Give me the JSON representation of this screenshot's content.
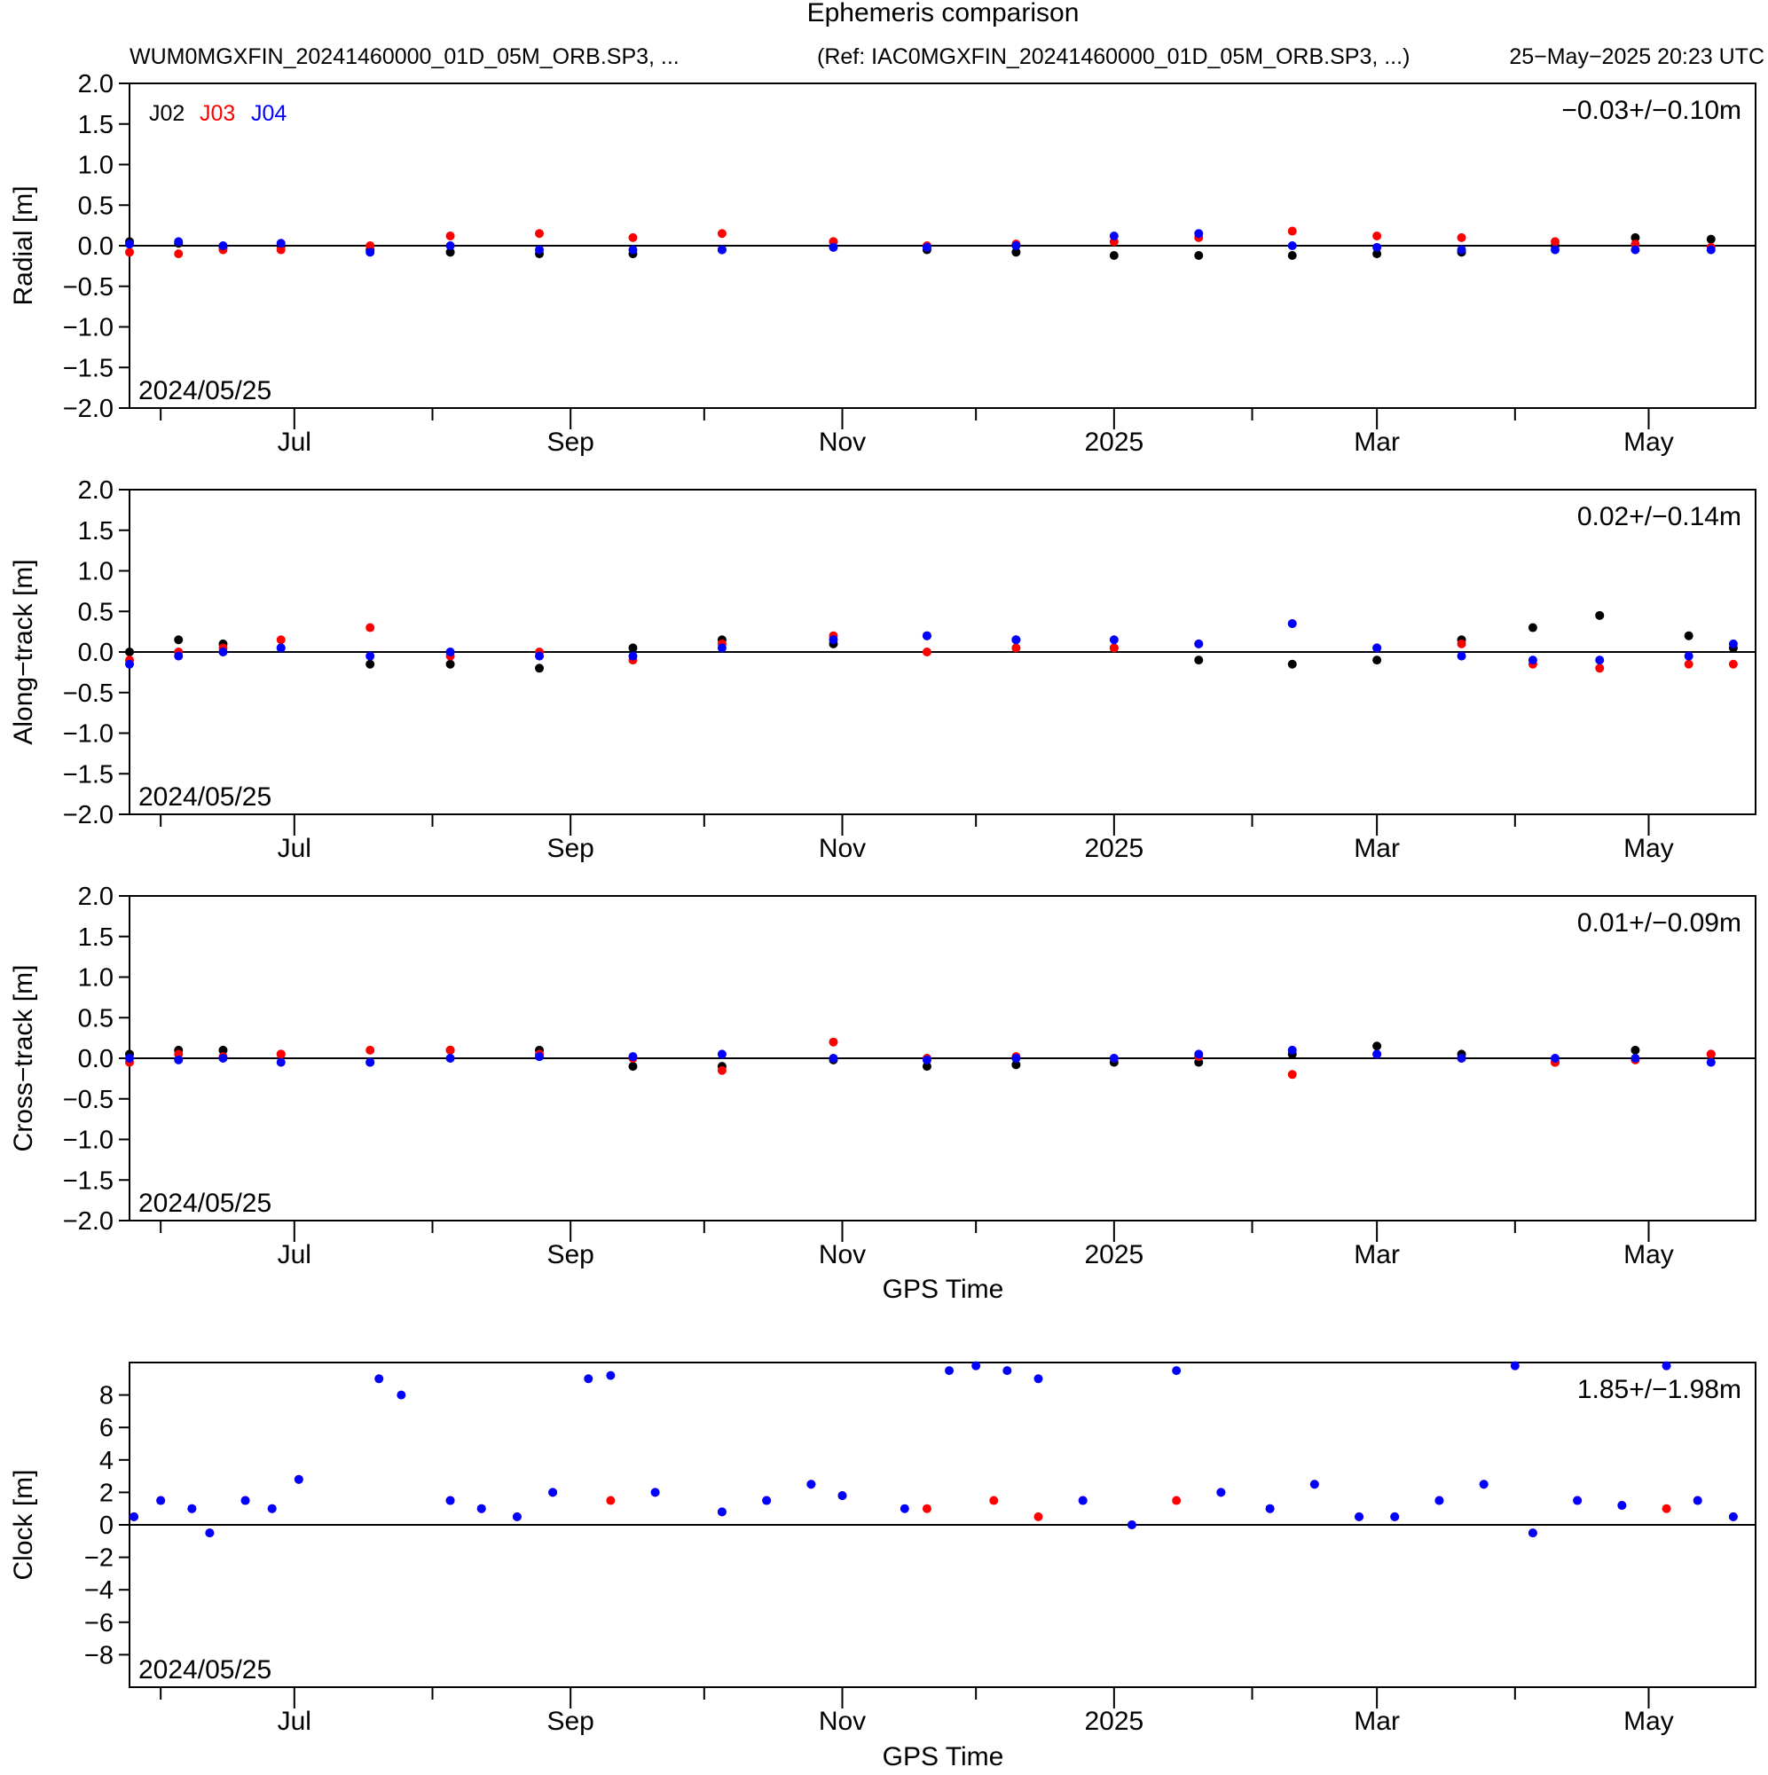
{
  "header": {
    "title": "Ephemeris comparison",
    "file_label": "WUM0MGXFIN_20241460000_01D_05M_ORB.SP3, ...",
    "ref_label": "(Ref: IAC0MGXFIN_20241460000_01D_05M_ORB.SP3, ...)",
    "timestamp": "25−May−2025 20:23 UTC"
  },
  "x_axis": {
    "label": "GPS Time",
    "start_date": "2024/05/25",
    "range": [
      "2024-05-25",
      "2025-05-25"
    ],
    "major_ticks": [
      {
        "date": "2024-07-01",
        "label": "Jul"
      },
      {
        "date": "2024-09-01",
        "label": "Sep"
      },
      {
        "date": "2024-11-01",
        "label": "Nov"
      },
      {
        "date": "2025-01-01",
        "label": "2025"
      },
      {
        "date": "2025-03-01",
        "label": "Mar"
      },
      {
        "date": "2025-05-01",
        "label": "May"
      }
    ],
    "minor_ticks": [
      "2024-06-01",
      "2024-08-01",
      "2024-10-01",
      "2024-12-01",
      "2025-02-01",
      "2025-04-01"
    ]
  },
  "colors": {
    "J02": "#000000",
    "J03": "#ff0000",
    "J04": "#0000ff"
  },
  "chart_data": [
    {
      "type": "scatter",
      "ylabel": "Radial [m]",
      "ylim": [
        -2.0,
        2.0
      ],
      "yticks": [
        "2.0",
        "1.5",
        "1.0",
        "0.5",
        "0.0",
        "−0.5",
        "−1.0",
        "−1.5",
        "−2.0"
      ],
      "stat": "−0.03+/−0.10m",
      "date_label": "2024/05/25",
      "legend": [
        "J02",
        "J03",
        "J04"
      ],
      "series": [
        {
          "name": "J02",
          "x": [
            "2024-05-25",
            "2024-06-05",
            "2024-06-15",
            "2024-06-28",
            "2024-07-18",
            "2024-08-05",
            "2024-08-25",
            "2024-09-15",
            "2024-10-05",
            "2024-10-30",
            "2024-11-20",
            "2024-12-10",
            "2025-01-01",
            "2025-01-20",
            "2025-02-10",
            "2025-03-01",
            "2025-03-20",
            "2025-04-10",
            "2025-04-28",
            "2025-05-15"
          ],
          "y": [
            0.05,
            0.03,
            -0.02,
            0.0,
            -0.05,
            -0.08,
            -0.1,
            -0.1,
            -0.05,
            0.05,
            -0.05,
            -0.08,
            -0.12,
            -0.12,
            -0.12,
            -0.1,
            -0.08,
            0.0,
            0.1,
            0.08
          ]
        },
        {
          "name": "J03",
          "x": [
            "2024-05-25",
            "2024-06-05",
            "2024-06-15",
            "2024-06-28",
            "2024-07-18",
            "2024-08-05",
            "2024-08-25",
            "2024-09-15",
            "2024-10-05",
            "2024-10-30",
            "2024-11-20",
            "2024-12-10",
            "2025-01-01",
            "2025-01-20",
            "2025-02-10",
            "2025-03-01",
            "2025-03-20",
            "2025-04-10",
            "2025-04-28",
            "2025-05-15"
          ],
          "y": [
            -0.08,
            -0.1,
            -0.05,
            -0.05,
            0.0,
            0.12,
            0.15,
            0.1,
            0.15,
            0.05,
            0.0,
            0.02,
            0.05,
            0.1,
            0.18,
            0.12,
            0.1,
            0.05,
            0.02,
            -0.02
          ]
        },
        {
          "name": "J04",
          "x": [
            "2024-05-25",
            "2024-06-05",
            "2024-06-15",
            "2024-06-28",
            "2024-07-18",
            "2024-08-05",
            "2024-08-25",
            "2024-09-15",
            "2024-10-05",
            "2024-10-30",
            "2024-11-20",
            "2024-12-10",
            "2025-01-01",
            "2025-01-20",
            "2025-02-10",
            "2025-03-01",
            "2025-03-20",
            "2025-04-10",
            "2025-04-28",
            "2025-05-15"
          ],
          "y": [
            0.02,
            0.05,
            0.0,
            0.03,
            -0.08,
            0.0,
            -0.05,
            -0.05,
            -0.05,
            -0.02,
            -0.02,
            0.0,
            0.12,
            0.15,
            0.0,
            -0.02,
            -0.05,
            -0.05,
            -0.05,
            -0.05
          ]
        }
      ]
    },
    {
      "type": "scatter",
      "ylabel": "Along−track [m]",
      "ylim": [
        -2.0,
        2.0
      ],
      "yticks": [
        "2.0",
        "1.5",
        "1.0",
        "0.5",
        "0.0",
        "−0.5",
        "−1.0",
        "−1.5",
        "−2.0"
      ],
      "stat": "0.02+/−0.14m",
      "date_label": "2024/05/25",
      "series": [
        {
          "name": "J02",
          "x": [
            "2024-05-25",
            "2024-06-05",
            "2024-06-15",
            "2024-06-28",
            "2024-07-18",
            "2024-08-05",
            "2024-08-25",
            "2024-09-15",
            "2024-10-05",
            "2024-10-30",
            "2024-11-20",
            "2024-12-10",
            "2025-01-01",
            "2025-01-20",
            "2025-02-10",
            "2025-03-01",
            "2025-03-20",
            "2025-04-05",
            "2025-04-20",
            "2025-05-10",
            "2025-05-20"
          ],
          "y": [
            0.0,
            0.15,
            0.1,
            0.05,
            -0.15,
            -0.15,
            -0.2,
            0.05,
            0.15,
            0.1,
            0.2,
            0.15,
            0.05,
            -0.1,
            -0.15,
            -0.1,
            0.15,
            0.3,
            0.45,
            0.2,
            0.05
          ]
        },
        {
          "name": "J03",
          "x": [
            "2024-05-25",
            "2024-06-05",
            "2024-06-15",
            "2024-06-28",
            "2024-07-18",
            "2024-08-05",
            "2024-08-25",
            "2024-09-15",
            "2024-10-05",
            "2024-10-30",
            "2024-11-20",
            "2024-12-10",
            "2025-01-01",
            "2025-01-20",
            "2025-02-10",
            "2025-03-01",
            "2025-03-20",
            "2025-04-05",
            "2025-04-20",
            "2025-05-10",
            "2025-05-20"
          ],
          "y": [
            -0.1,
            0.0,
            0.05,
            0.15,
            0.3,
            -0.05,
            0.0,
            -0.1,
            0.1,
            0.2,
            0.0,
            0.05,
            0.05,
            0.1,
            0.35,
            0.05,
            0.1,
            -0.15,
            -0.2,
            -0.15,
            -0.15
          ]
        },
        {
          "name": "J04",
          "x": [
            "2024-05-25",
            "2024-06-05",
            "2024-06-15",
            "2024-06-28",
            "2024-07-18",
            "2024-08-05",
            "2024-08-25",
            "2024-09-15",
            "2024-10-05",
            "2024-10-30",
            "2024-11-20",
            "2024-12-10",
            "2025-01-01",
            "2025-01-20",
            "2025-02-10",
            "2025-03-01",
            "2025-03-20",
            "2025-04-05",
            "2025-04-20",
            "2025-05-10",
            "2025-05-20"
          ],
          "y": [
            -0.15,
            -0.05,
            0.0,
            0.05,
            -0.05,
            0.0,
            -0.05,
            -0.05,
            0.05,
            0.15,
            0.2,
            0.15,
            0.15,
            0.1,
            0.35,
            0.05,
            -0.05,
            -0.1,
            -0.1,
            -0.05,
            0.1
          ]
        }
      ]
    },
    {
      "type": "scatter",
      "ylabel": "Cross−track [m]",
      "ylim": [
        -2.0,
        2.0
      ],
      "yticks": [
        "2.0",
        "1.5",
        "1.0",
        "0.5",
        "0.0",
        "−0.5",
        "−1.0",
        "−1.5",
        "−2.0"
      ],
      "stat": "0.01+/−0.09m",
      "date_label": "2024/05/25",
      "series": [
        {
          "name": "J02",
          "x": [
            "2024-05-25",
            "2024-06-05",
            "2024-06-15",
            "2024-06-28",
            "2024-07-18",
            "2024-08-05",
            "2024-08-25",
            "2024-09-15",
            "2024-10-05",
            "2024-10-30",
            "2024-11-20",
            "2024-12-10",
            "2025-01-01",
            "2025-01-20",
            "2025-02-10",
            "2025-03-01",
            "2025-03-20",
            "2025-04-10",
            "2025-04-28",
            "2025-05-15"
          ],
          "y": [
            0.05,
            0.1,
            0.1,
            0.05,
            -0.05,
            0.1,
            0.1,
            -0.1,
            -0.1,
            -0.02,
            -0.1,
            -0.08,
            -0.05,
            -0.05,
            0.05,
            0.15,
            0.05,
            -0.05,
            0.1,
            0.05
          ]
        },
        {
          "name": "J03",
          "x": [
            "2024-05-25",
            "2024-06-05",
            "2024-06-15",
            "2024-06-28",
            "2024-07-18",
            "2024-08-05",
            "2024-08-25",
            "2024-09-15",
            "2024-10-05",
            "2024-10-30",
            "2024-11-20",
            "2024-12-10",
            "2025-01-01",
            "2025-01-20",
            "2025-02-10",
            "2025-03-01",
            "2025-03-20",
            "2025-04-10",
            "2025-04-28",
            "2025-05-15"
          ],
          "y": [
            -0.05,
            0.05,
            0.02,
            0.05,
            0.1,
            0.1,
            0.05,
            0.0,
            -0.15,
            0.2,
            0.0,
            0.02,
            0.0,
            0.02,
            -0.2,
            0.05,
            0.0,
            -0.05,
            -0.02,
            0.05
          ]
        },
        {
          "name": "J04",
          "x": [
            "2024-05-25",
            "2024-06-05",
            "2024-06-15",
            "2024-06-28",
            "2024-07-18",
            "2024-08-05",
            "2024-08-25",
            "2024-09-15",
            "2024-10-05",
            "2024-10-30",
            "2024-11-20",
            "2024-12-10",
            "2025-01-01",
            "2025-01-20",
            "2025-02-10",
            "2025-03-01",
            "2025-03-20",
            "2025-04-10",
            "2025-04-28",
            "2025-05-15"
          ],
          "y": [
            0.0,
            -0.02,
            0.0,
            -0.05,
            -0.05,
            0.0,
            0.02,
            0.02,
            0.05,
            0.0,
            -0.02,
            0.0,
            0.0,
            0.05,
            0.1,
            0.05,
            0.0,
            0.0,
            0.0,
            -0.05
          ]
        }
      ]
    },
    {
      "type": "scatter",
      "ylabel": "Clock [m]",
      "ylim": [
        -10,
        10
      ],
      "yticks": [
        "8",
        "6",
        "4",
        "2",
        "0",
        "−2",
        "−4",
        "−6",
        "−8"
      ],
      "stat": "1.85+/−1.98m",
      "date_label": "2024/05/25",
      "xlabel": "GPS Time",
      "series": [
        {
          "name": "J03",
          "x": [
            "2024-05-26",
            "2024-06-01",
            "2024-06-08",
            "2024-06-12",
            "2024-06-20",
            "2024-06-26",
            "2024-07-02",
            "2024-08-05",
            "2024-08-12",
            "2024-08-20",
            "2024-08-28",
            "2024-09-10",
            "2024-09-20",
            "2024-10-05",
            "2024-10-15",
            "2024-10-25",
            "2024-11-01",
            "2024-11-20",
            "2024-12-05",
            "2024-12-15",
            "2024-12-25",
            "2025-01-05",
            "2025-01-15",
            "2025-01-25",
            "2025-02-05",
            "2025-02-15",
            "2025-02-25",
            "2025-03-05",
            "2025-03-15",
            "2025-03-25",
            "2025-04-05",
            "2025-04-15",
            "2025-04-25",
            "2025-05-05",
            "2025-05-12",
            "2025-05-20"
          ],
          "y": [
            0.5,
            1.5,
            1.0,
            -0.5,
            1.5,
            1.0,
            2.8,
            1.5,
            1.0,
            0.5,
            2.0,
            1.5,
            2.0,
            0.8,
            1.5,
            2.5,
            1.8,
            1.0,
            1.5,
            0.5,
            1.5,
            0.0,
            1.5,
            2.0,
            1.0,
            2.5,
            0.5,
            0.5,
            1.5,
            2.5,
            -0.5,
            1.5,
            1.2,
            1.0,
            1.5,
            0.5
          ]
        },
        {
          "name": "J04",
          "x": [
            "2024-05-26",
            "2024-06-01",
            "2024-06-08",
            "2024-06-12",
            "2024-06-20",
            "2024-06-26",
            "2024-07-02",
            "2024-07-20",
            "2024-07-25",
            "2024-08-05",
            "2024-08-12",
            "2024-08-20",
            "2024-08-28",
            "2024-09-05",
            "2024-09-10",
            "2024-09-20",
            "2024-10-05",
            "2024-10-15",
            "2024-10-25",
            "2024-11-01",
            "2024-11-15",
            "2024-11-25",
            "2024-12-01",
            "2024-12-08",
            "2024-12-15",
            "2024-12-25",
            "2025-01-05",
            "2025-01-15",
            "2025-01-25",
            "2025-02-05",
            "2025-02-15",
            "2025-02-25",
            "2025-03-05",
            "2025-03-15",
            "2025-03-25",
            "2025-04-01",
            "2025-04-05",
            "2025-04-15",
            "2025-04-25",
            "2025-05-05",
            "2025-05-12",
            "2025-05-20"
          ],
          "y": [
            0.5,
            1.5,
            1.0,
            -0.5,
            1.5,
            1.0,
            2.8,
            9.0,
            8.0,
            1.5,
            1.0,
            0.5,
            2.0,
            9.0,
            9.2,
            2.0,
            0.8,
            1.5,
            2.5,
            1.8,
            1.0,
            9.5,
            9.8,
            9.5,
            9.0,
            1.5,
            0.0,
            9.5,
            2.0,
            1.0,
            2.5,
            0.5,
            0.5,
            1.5,
            2.5,
            9.8,
            -0.5,
            1.5,
            1.2,
            9.8,
            1.5,
            0.5
          ]
        }
      ]
    }
  ]
}
